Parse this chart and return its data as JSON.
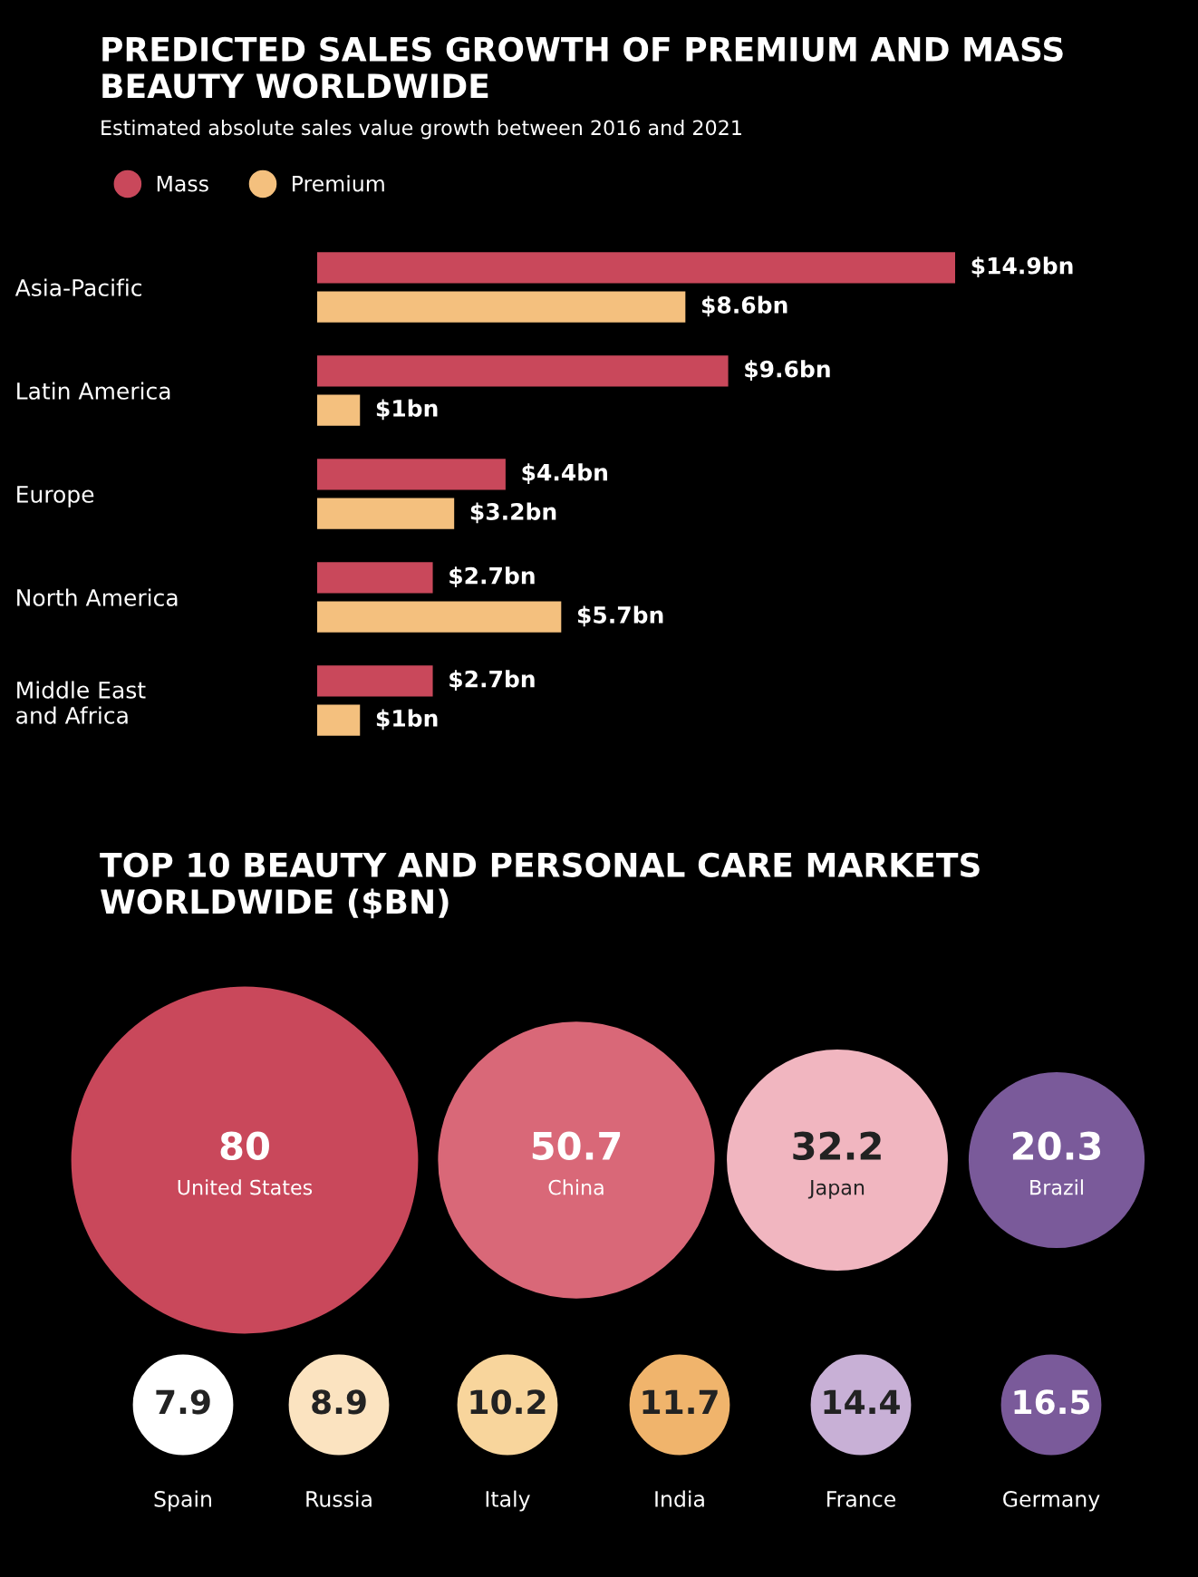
{
  "chart_data": [
    {
      "type": "bar",
      "orientation": "horizontal",
      "title": "PREDICTED SALES GROWTH OF PREMIUM AND MASS BEAUTY WORLDWIDE",
      "subtitle": "Estimated absolute sales value growth between 2016 and 2021",
      "categories": [
        "Asia-Pacific",
        "Latin America",
        "Europe",
        "North America",
        "Middle East\nand Africa"
      ],
      "series": [
        {
          "name": "Mass",
          "color": "#c9485b",
          "values": [
            14.9,
            9.6,
            4.4,
            2.7,
            2.7
          ],
          "value_labels": [
            "$14.9bn",
            "$9.6bn",
            "$4.4bn",
            "$2.7bn",
            "$2.7bn"
          ]
        },
        {
          "name": "Premium",
          "color": "#f4c07e",
          "values": [
            8.6,
            1,
            3.2,
            5.7,
            1
          ],
          "value_labels": [
            "$8.6bn",
            "$1bn",
            "$3.2bn",
            "$5.7bn",
            "$1bn"
          ]
        }
      ],
      "legend": "top left",
      "tick_labels": "y",
      "grid": false
    },
    {
      "type": "other",
      "title": "TOP 10 BEAUTY AND PERSONAL CARE MARKETS WORLDWIDE ($BN)",
      "categories": [
        "United States",
        "China",
        "Japan",
        "Brazil",
        "Spain",
        "Russia",
        "Italy",
        "India",
        "France",
        "Germany"
      ],
      "values": [
        80,
        50.7,
        32.2,
        20.3,
        7.9,
        8.9,
        10.2,
        11.7,
        14.4,
        16.5
      ],
      "colors": [
        "#c9485b",
        "#d96878",
        "#f1b6c0",
        "#7a5a9a",
        "#ffffff",
        "#fbe3c0",
        "#f8d59c",
        "#f0b46c",
        "#c8b0d6",
        "#7a5a9a"
      ],
      "data_labels": true
    }
  ]
}
